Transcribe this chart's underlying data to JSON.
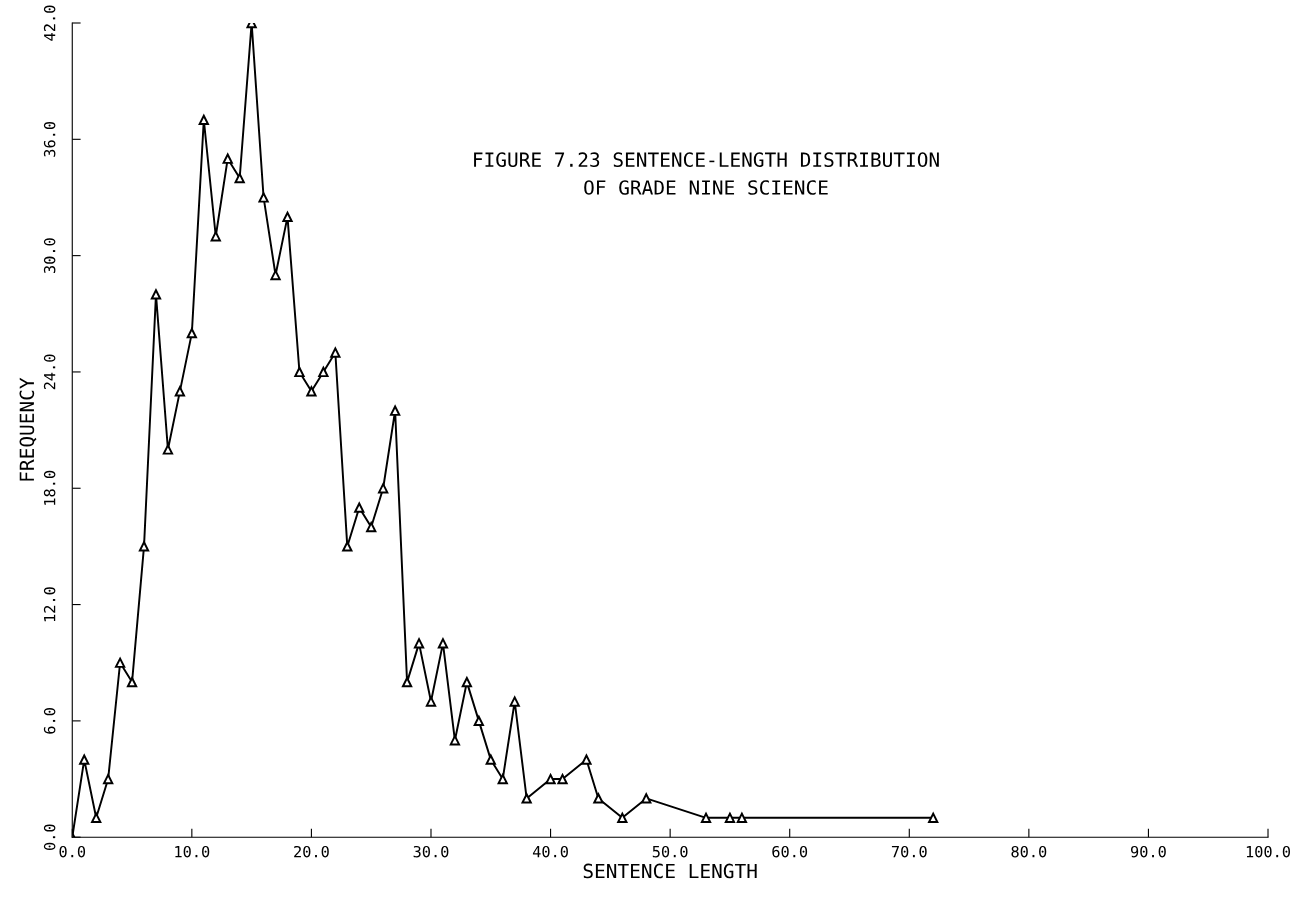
{
  "chart_data": {
    "type": "line",
    "title": "FIGURE 7.23 SENTENCE-LENGTH DISTRIBUTION\nOF GRADE NINE SCIENCE",
    "xlabel": "SENTENCE LENGTH",
    "ylabel": "FREQUENCY",
    "series": [
      {
        "color": "#000000",
        "x": [
          0,
          1,
          2,
          3,
          4,
          5,
          6,
          7,
          8,
          9,
          10,
          11,
          12,
          13,
          14,
          15,
          16,
          17,
          18,
          19,
          20,
          21,
          22,
          23,
          24,
          25,
          26,
          27,
          28,
          29,
          30,
          31,
          32,
          33,
          34,
          35,
          36,
          37,
          38,
          40,
          41,
          43,
          44,
          46,
          48,
          53,
          55,
          56,
          72
        ],
        "values": [
          0,
          4,
          1,
          3,
          9,
          8,
          15,
          28,
          20,
          23,
          26,
          37,
          31,
          35,
          34,
          42,
          33,
          29,
          32,
          24,
          23,
          24,
          25,
          15,
          17,
          16,
          18,
          22,
          8,
          10,
          7,
          10,
          5,
          8,
          6,
          4,
          3,
          7,
          2,
          3,
          3,
          4,
          2,
          1,
          2,
          1,
          1,
          1,
          1
        ]
      }
    ],
    "xlim": [
      0,
      100
    ],
    "ylim": [
      0,
      42
    ],
    "xticks": [
      {
        "value": 0,
        "label": "0.0"
      },
      {
        "value": 10,
        "label": "10.0"
      },
      {
        "value": 20,
        "label": "20.0"
      },
      {
        "value": 30,
        "label": "30.0"
      },
      {
        "value": 40,
        "label": "40.0"
      },
      {
        "value": 50,
        "label": "50.0"
      },
      {
        "value": 60,
        "label": "60.0"
      },
      {
        "value": 70,
        "label": "70.0"
      },
      {
        "value": 80,
        "label": "80.0"
      },
      {
        "value": 90,
        "label": "90.0"
      },
      {
        "value": 100,
        "label": "100.0"
      }
    ],
    "yticks": [
      {
        "value": 0,
        "label": "0.0"
      },
      {
        "value": 6,
        "label": "6.0"
      },
      {
        "value": 12,
        "label": "12.0"
      },
      {
        "value": 18,
        "label": "18.0"
      },
      {
        "value": 24,
        "label": "24.0"
      },
      {
        "value": 30,
        "label": "30.0"
      },
      {
        "value": 36,
        "label": "36.0"
      },
      {
        "value": 42,
        "label": "42.0"
      }
    ],
    "marker": "triangle",
    "line_style": "solid",
    "grid": false,
    "legend": false
  }
}
